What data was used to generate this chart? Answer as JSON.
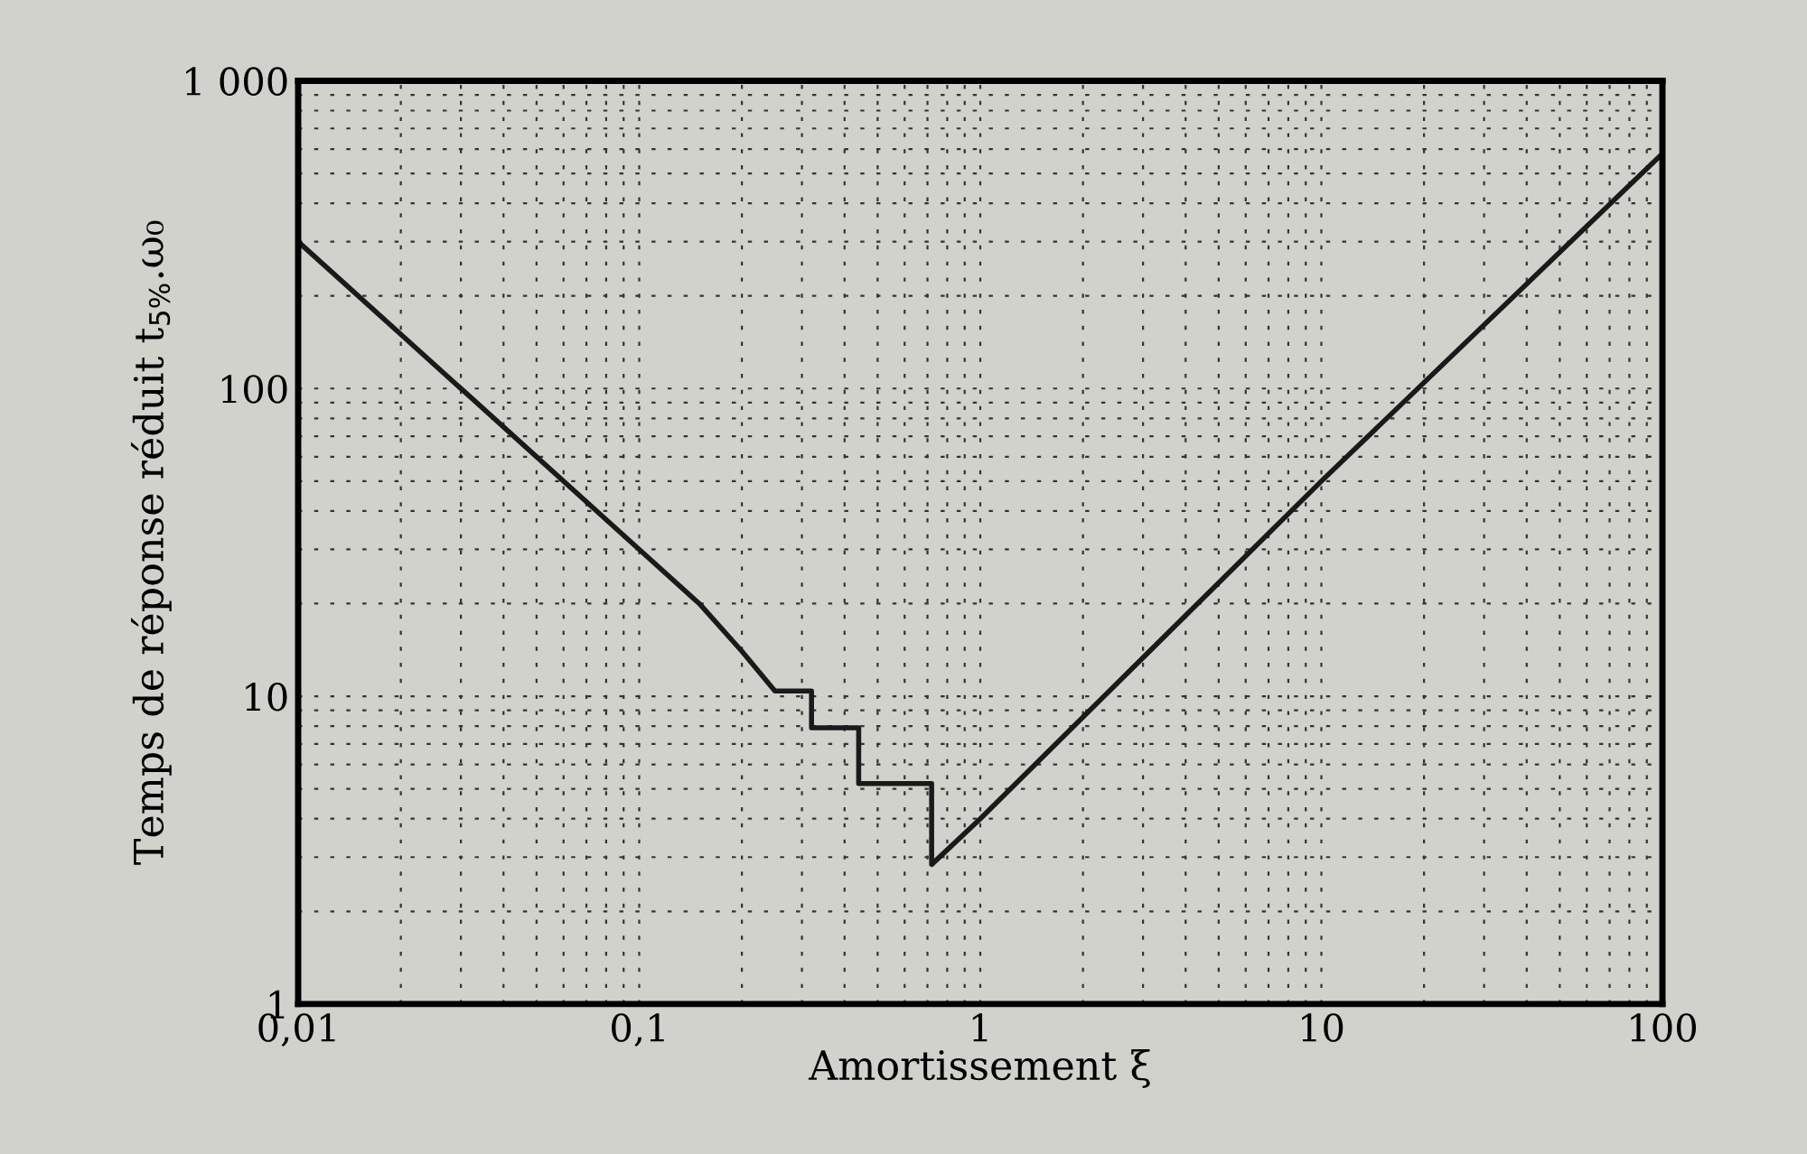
{
  "chart_data": {
    "type": "line",
    "xlabel": "Amortissement ξ",
    "ylabel": "Temps de réponse réduit t$_{5%}$.ω₀",
    "log": "xy",
    "xlim": [
      0.01,
      100
    ],
    "ylim": [
      1,
      1000
    ],
    "xticks": [
      {
        "value": 0.01,
        "label": "0,01"
      },
      {
        "value": 0.1,
        "label": "0,1"
      },
      1,
      10,
      100
    ],
    "yticks": [
      1,
      10,
      100,
      {
        "value": 1000,
        "label": "1 000"
      }
    ],
    "grid": true,
    "line_style": "solid",
    "marker": "none",
    "series": [
      {
        "color": "#1a1a1a",
        "x": [
          0.01,
          0.02,
          0.05,
          0.1,
          0.15,
          0.2,
          0.25,
          0.32,
          0.32,
          0.44,
          0.44,
          0.72,
          0.72,
          1,
          10,
          100
        ],
        "values": [
          300,
          150,
          60,
          30,
          20,
          14,
          10.4,
          10.4,
          7.9,
          7.9,
          5.2,
          5.2,
          2.84,
          4.0,
          50,
          580
        ]
      }
    ]
  }
}
